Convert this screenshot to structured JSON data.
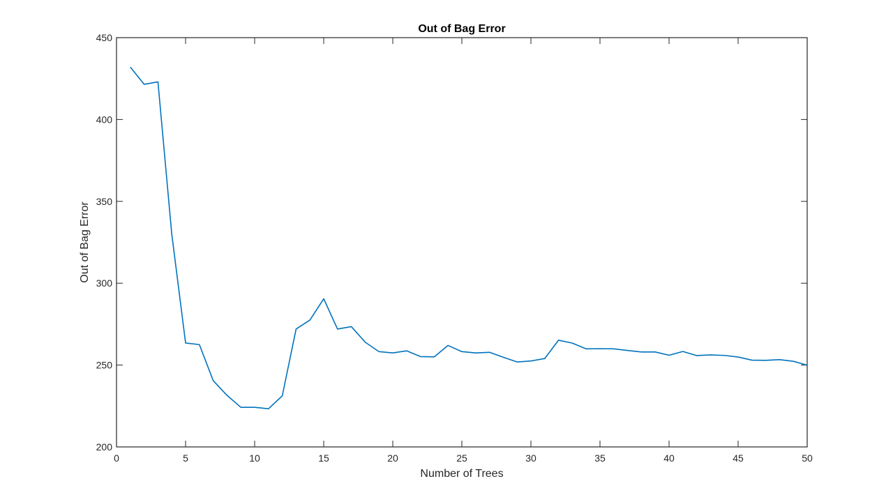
{
  "chart_data": {
    "type": "line",
    "title": "Out of Bag Error",
    "xlabel": "Number of Trees",
    "ylabel": "Out of Bag Error",
    "xlim": [
      0,
      50
    ],
    "ylim": [
      200,
      450
    ],
    "xticks": [
      0,
      5,
      10,
      15,
      20,
      25,
      30,
      35,
      40,
      45,
      50
    ],
    "yticks": [
      200,
      250,
      300,
      350,
      400,
      450
    ],
    "grid": false,
    "legend": "none",
    "series": [
      {
        "color": "#0072BD",
        "x": [
          1,
          2,
          3,
          4,
          5,
          6,
          7,
          8,
          9,
          10,
          11,
          12,
          13,
          14,
          15,
          16,
          17,
          18,
          19,
          20,
          21,
          22,
          23,
          24,
          25,
          26,
          27,
          28,
          29,
          30,
          31,
          32,
          33,
          34,
          35,
          36,
          37,
          38,
          39,
          40,
          41,
          42,
          43,
          44,
          45,
          46,
          47,
          48,
          49,
          50
        ],
        "values": [
          432,
          421.5,
          423,
          330,
          263.5,
          262.5,
          240.5,
          231.5,
          224.2,
          224.2,
          223.3,
          231.2,
          272,
          277.5,
          290.5,
          272,
          273.5,
          264,
          258.2,
          257.4,
          258.7,
          255.2,
          255,
          262,
          258.2,
          257.4,
          257.8,
          254.8,
          251.9,
          252.5,
          254,
          265.2,
          263.4,
          259.9,
          260,
          259.9,
          258.9,
          258,
          258,
          256,
          258.3,
          255.8,
          256.2,
          255.9,
          254.9,
          253,
          252.9,
          253.3,
          252.3,
          249.9
        ]
      }
    ]
  }
}
